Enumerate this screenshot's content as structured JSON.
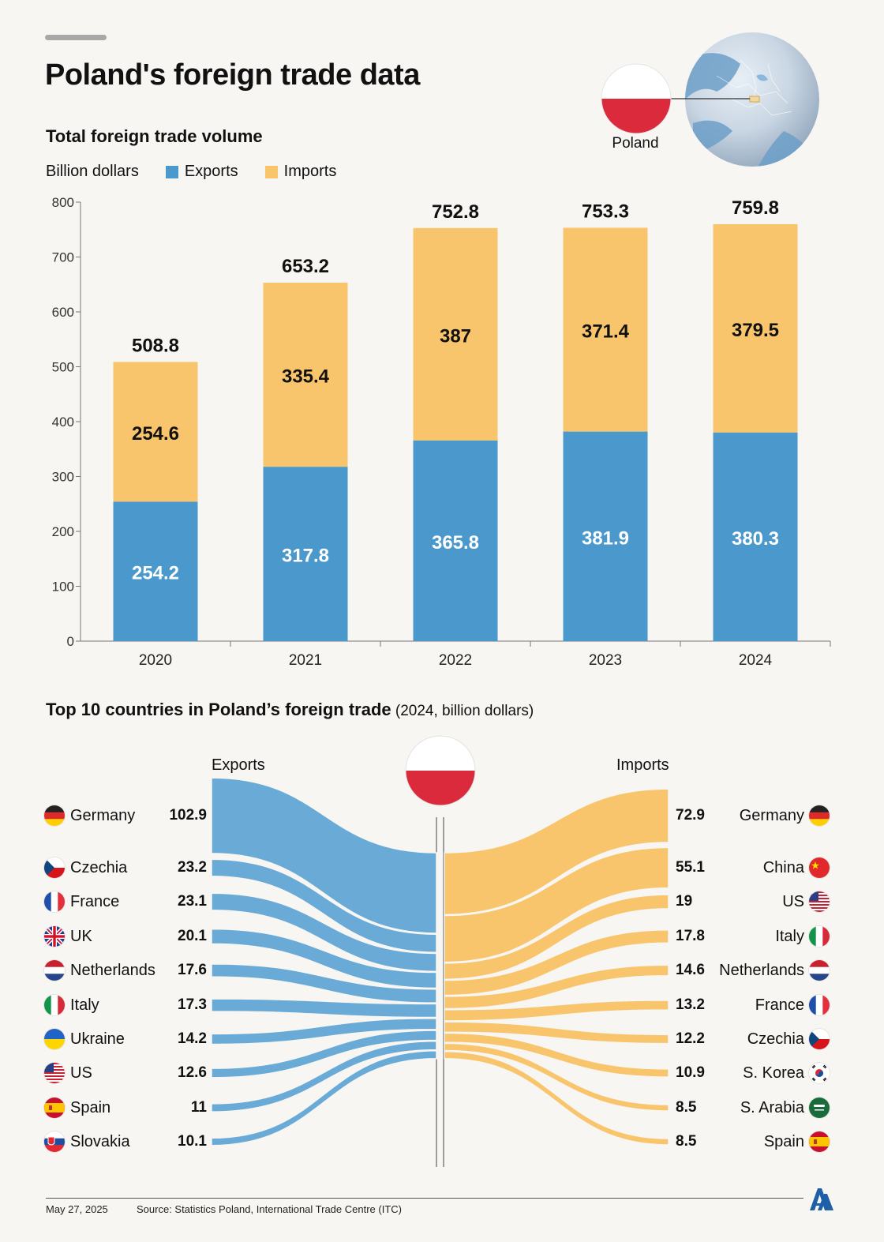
{
  "title": "Poland's foreign trade data",
  "globe_label": "Poland",
  "section1": {
    "subtitle": "Total foreign trade volume",
    "unit": "Billion dollars",
    "legend_exports": "Exports",
    "legend_imports": "Imports"
  },
  "section2": {
    "title_bold": "Top 10 countries in Poland’s foreign trade",
    "title_rest": " (2024, billion dollars)",
    "exports_header": "Exports",
    "imports_header": "Imports"
  },
  "chart_data": [
    {
      "type": "bar",
      "stacked": true,
      "title": "Total foreign trade volume",
      "ylabel": "Billion dollars",
      "categories": [
        "2020",
        "2021",
        "2022",
        "2023",
        "2024"
      ],
      "series": [
        {
          "name": "Exports",
          "color": "#4a98cc",
          "values": [
            254.2,
            317.8,
            365.8,
            381.9,
            380.3
          ]
        },
        {
          "name": "Imports",
          "color": "#f9c56c",
          "values": [
            254.6,
            335.4,
            387,
            371.4,
            379.5
          ]
        }
      ],
      "totals": [
        "508.8",
        "653.2",
        "752.8",
        "753.3",
        "759.8"
      ],
      "export_labels": [
        "254.2",
        "317.8",
        "365.8",
        "381.9",
        "380.3"
      ],
      "import_labels": [
        "254.6",
        "335.4",
        "387",
        "371.4",
        "379.5"
      ],
      "yticks": [
        "0",
        "100",
        "200",
        "300",
        "400",
        "500",
        "600",
        "700",
        "800"
      ],
      "ylim": [
        0,
        800
      ]
    },
    {
      "type": "sankey",
      "exports": [
        {
          "country": "Germany",
          "value": 102.9,
          "label": "102.9",
          "flag": "de"
        },
        {
          "country": "Czechia",
          "value": 23.2,
          "label": "23.2",
          "flag": "cz"
        },
        {
          "country": "France",
          "value": 23.1,
          "label": "23.1",
          "flag": "fr"
        },
        {
          "country": "UK",
          "value": 20.1,
          "label": "20.1",
          "flag": "uk"
        },
        {
          "country": "Netherlands",
          "value": 17.6,
          "label": "17.6",
          "flag": "nl"
        },
        {
          "country": "Italy",
          "value": 17.3,
          "label": "17.3",
          "flag": "it"
        },
        {
          "country": "Ukraine",
          "value": 14.2,
          "label": "14.2",
          "flag": "ua"
        },
        {
          "country": "US",
          "value": 12.6,
          "label": "12.6",
          "flag": "us"
        },
        {
          "country": "Spain",
          "value": 11,
          "label": "11",
          "flag": "es"
        },
        {
          "country": "Slovakia",
          "value": 10.1,
          "label": "10.1",
          "flag": "sk"
        }
      ],
      "imports": [
        {
          "country": "Germany",
          "value": 72.9,
          "label": "72.9",
          "flag": "de"
        },
        {
          "country": "China",
          "value": 55.1,
          "label": "55.1",
          "flag": "cn"
        },
        {
          "country": "US",
          "value": 19,
          "label": "19",
          "flag": "us"
        },
        {
          "country": "Italy",
          "value": 17.8,
          "label": "17.8",
          "flag": "it"
        },
        {
          "country": "Netherlands",
          "value": 14.6,
          "label": "14.6",
          "flag": "nl"
        },
        {
          "country": "France",
          "value": 13.2,
          "label": "13.2",
          "flag": "fr"
        },
        {
          "country": "Czechia",
          "value": 12.2,
          "label": "12.2",
          "flag": "cz"
        },
        {
          "country": "S. Korea",
          "value": 10.9,
          "label": "10.9",
          "flag": "kr"
        },
        {
          "country": "S. Arabia",
          "value": 8.5,
          "label": "8.5",
          "flag": "sa"
        },
        {
          "country": "Spain",
          "value": 8.5,
          "label": "8.5",
          "flag": "es"
        }
      ]
    }
  ],
  "footer": {
    "date": "May 27, 2025",
    "source": "Source: Statistics Poland, International Trade Centre (ITC)"
  },
  "colors": {
    "exports": "#4a98cc",
    "imports": "#f9c56c",
    "exports_flow": "#6aaad6",
    "poland_red": "#dc2a3d"
  }
}
